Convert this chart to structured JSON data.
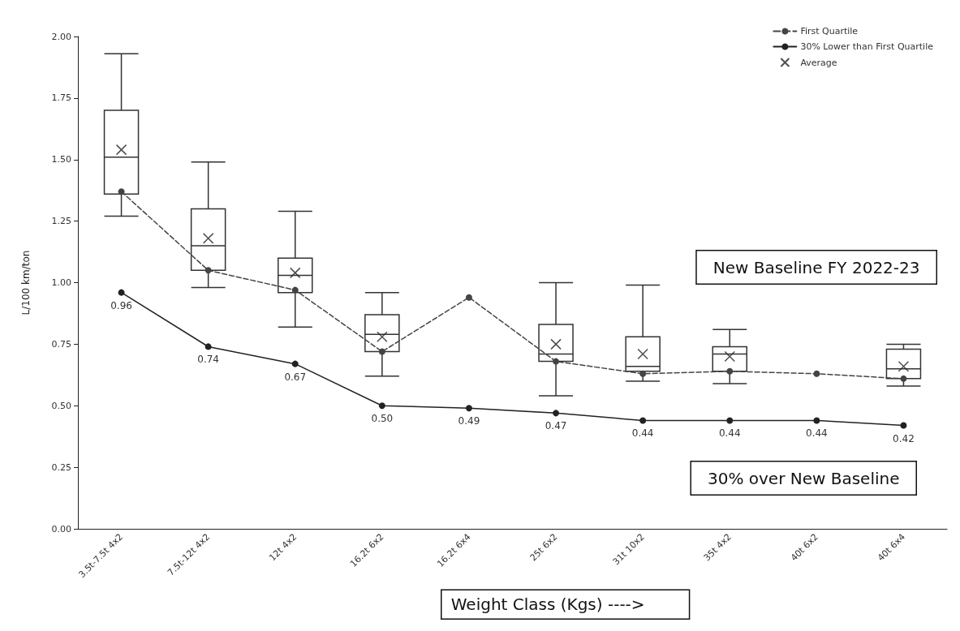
{
  "chart_data": {
    "type": "box",
    "xlabel": "Weight Class (Kgs) ---->",
    "ylabel": "L/100 km/ton",
    "categories": [
      "3.5t-7.5t 4x2",
      "7.5t-12t 4x2",
      "12t 4x2",
      "16.2t 6x2",
      "16.2t 6x4",
      "25t 6x2",
      "31t 10x2",
      "35t 4x2",
      "40t 6x2",
      "40t 6x4"
    ],
    "ylim": [
      0,
      2
    ],
    "yticks": [
      {
        "value": 0,
        "label": "0.00"
      },
      {
        "value": 0.25,
        "label": "0.25"
      },
      {
        "value": 0.5,
        "label": "0.50"
      },
      {
        "value": 0.75,
        "label": "0.75"
      },
      {
        "value": 1,
        "label": "1.00"
      },
      {
        "value": 1.25,
        "label": "1.25"
      },
      {
        "value": 1.5,
        "label": "1.50"
      },
      {
        "value": 1.75,
        "label": "1.75"
      },
      {
        "value": 2,
        "label": "2.00"
      }
    ],
    "series": [
      {
        "color": "#333333",
        "boxes": [
          {
            "low": 1.27,
            "q1": 1.36,
            "median": 1.51,
            "q3": 1.7,
            "high": 1.93
          },
          {
            "low": 0.98,
            "q1": 1.05,
            "median": 1.15,
            "q3": 1.3,
            "high": 1.49
          },
          {
            "low": 0.82,
            "q1": 0.96,
            "median": 1.03,
            "q3": 1.1,
            "high": 1.29
          },
          {
            "low": 0.62,
            "q1": 0.72,
            "median": 0.79,
            "q3": 0.87,
            "high": 0.96
          },
          null,
          {
            "low": 0.54,
            "q1": 0.68,
            "median": 0.71,
            "q3": 0.83,
            "high": 1.0
          },
          {
            "low": 0.6,
            "q1": 0.64,
            "median": 0.66,
            "q3": 0.78,
            "high": 0.99
          },
          {
            "low": 0.59,
            "q1": 0.64,
            "median": 0.71,
            "q3": 0.74,
            "high": 0.81
          },
          null,
          {
            "low": 0.58,
            "q1": 0.61,
            "median": 0.65,
            "q3": 0.73,
            "high": 0.75
          }
        ]
      },
      {
        "type": "line",
        "name": "First Quartile",
        "color": "#444444",
        "line_style": "dashed",
        "marker": "circle",
        "values": [
          1.37,
          1.05,
          0.97,
          0.72,
          0.94,
          0.68,
          0.63,
          0.64,
          0.63,
          0.61
        ]
      },
      {
        "type": "line",
        "name": "30% Lower than First Quartile",
        "color": "#222222",
        "line_style": "solid",
        "marker": "circle",
        "values": [
          0.96,
          0.74,
          0.67,
          0.5,
          0.49,
          0.47,
          0.44,
          0.44,
          0.44,
          0.42
        ],
        "value_labels": [
          "0.96",
          "0.74",
          "0.67",
          "0.50",
          "0.49",
          "0.47",
          "0.44",
          "0.44",
          "0.44",
          "0.42"
        ]
      },
      {
        "type": "scatter",
        "name": "Average",
        "color": "#222222",
        "marker": "cross",
        "values": [
          1.54,
          1.18,
          1.04,
          0.78,
          null,
          0.75,
          0.71,
          0.7,
          null,
          0.66
        ]
      }
    ],
    "annotations": [
      "New Baseline FY 2022-23",
      "30% over New Baseline"
    ],
    "legend": "top right",
    "grid": false
  }
}
